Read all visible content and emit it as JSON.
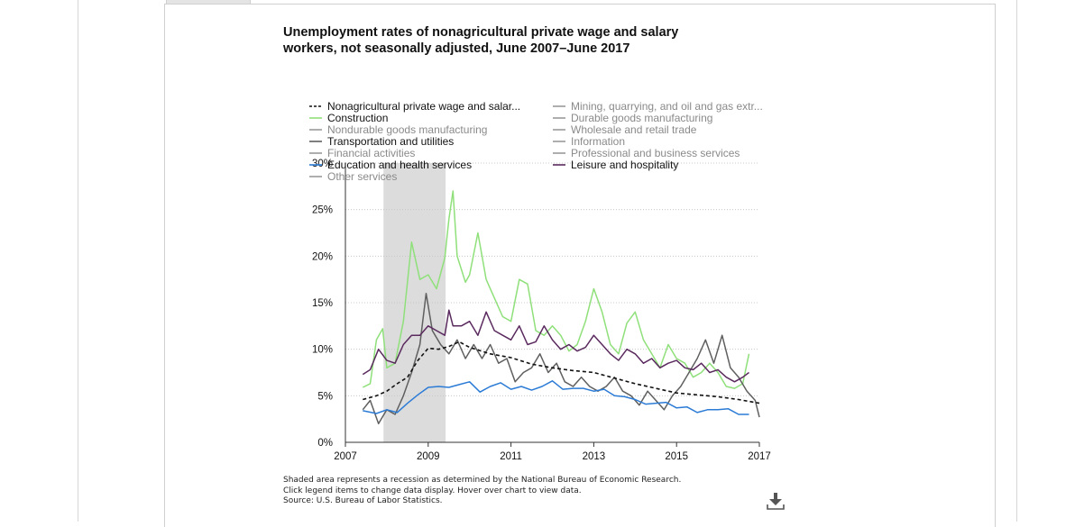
{
  "chart_title": "Unemployment rates of nonagricultural private wage and salary workers, not seasonally adjusted, June 2007–June 2017",
  "notes": [
    "Shaded area represents a recession as determined by the National Bureau of Economic Research.",
    "Click legend items to change data display. Hover over chart to view data.",
    "Source: U.S. Bureau of Labor Statistics."
  ],
  "download_icon": "download-icon",
  "chart_data": {
    "type": "line",
    "title": "Unemployment rates of nonagricultural private wage and salary workers, not seasonally adjusted, June 2007–June 2017",
    "x_range": [
      2007,
      2017
    ],
    "x_ticks": [
      "2007",
      "2009",
      "2011",
      "2013",
      "2015",
      "2017"
    ],
    "ylim": [
      0,
      30
    ],
    "y_ticks": [
      "0%",
      "5%",
      "10%",
      "15%",
      "20%",
      "25%",
      "30%"
    ],
    "grid": "horizontal dotted",
    "recession": {
      "start": 2007.92,
      "end": 2009.42
    },
    "legend_columns": [
      [
        "Nonagricultural private wage and salar...",
        "Construction",
        "Nondurable goods manufacturing",
        "Transportation and utilities",
        "Financial activities",
        "Education and health services",
        "Other services"
      ],
      [
        "Mining, quarrying, and oil and gas extr...",
        "Durable goods manufacturing",
        "Wholesale and retail trade",
        "Information",
        "Professional and business services",
        "Leisure and hospitality"
      ]
    ],
    "series": [
      {
        "name": "Nonagricultural private wage and salar...",
        "color": "#111111",
        "dashed": true,
        "visible": true,
        "x": [
          2007.42,
          2007.75,
          2008.0,
          2008.25,
          2008.5,
          2008.75,
          2009.0,
          2009.25,
          2009.5,
          2009.75,
          2010.0,
          2010.5,
          2011.0,
          2011.5,
          2012.0,
          2012.5,
          2013.0,
          2013.5,
          2014.0,
          2014.5,
          2015.0,
          2015.5,
          2016.0,
          2016.5,
          2017.0
        ],
        "y": [
          4.6,
          5.0,
          5.5,
          6.3,
          7.0,
          8.8,
          10.1,
          10.0,
          10.3,
          10.8,
          10.2,
          9.5,
          9.1,
          8.4,
          8.0,
          7.7,
          7.5,
          6.9,
          6.3,
          5.8,
          5.3,
          5.1,
          4.9,
          4.6,
          4.2
        ]
      },
      {
        "name": "Construction",
        "color": "#8fe07a",
        "dashed": false,
        "visible": true,
        "x": [
          2007.42,
          2007.6,
          2007.75,
          2007.9,
          2008.0,
          2008.2,
          2008.4,
          2008.6,
          2008.8,
          2009.0,
          2009.2,
          2009.4,
          2009.5,
          2009.6,
          2009.7,
          2009.9,
          2010.0,
          2010.2,
          2010.4,
          2010.6,
          2010.8,
          2011.0,
          2011.2,
          2011.4,
          2011.6,
          2011.8,
          2012.0,
          2012.2,
          2012.4,
          2012.6,
          2012.8,
          2013.0,
          2013.2,
          2013.4,
          2013.6,
          2013.8,
          2014.0,
          2014.2,
          2014.4,
          2014.6,
          2014.8,
          2015.0,
          2015.2,
          2015.4,
          2015.6,
          2015.8,
          2016.0,
          2016.2,
          2016.4,
          2016.6,
          2016.75
        ],
        "y": [
          5.9,
          6.3,
          11.0,
          12.2,
          8.0,
          8.5,
          13.0,
          21.5,
          17.5,
          18.0,
          16.5,
          19.8,
          24.0,
          27.0,
          20.0,
          17.2,
          18.0,
          22.5,
          17.5,
          15.5,
          13.5,
          13.0,
          17.5,
          17.0,
          12.0,
          11.5,
          12.5,
          11.5,
          9.8,
          10.5,
          13.0,
          16.5,
          14.0,
          10.5,
          9.5,
          12.8,
          14.0,
          11.0,
          9.5,
          8.0,
          10.5,
          9.0,
          8.5,
          7.0,
          7.5,
          8.5,
          7.5,
          6.0,
          5.8,
          6.3,
          9.5
        ]
      },
      {
        "name": "Transportation and utilities",
        "color": "#5f5f5f",
        "dashed": false,
        "visible": true,
        "x": [
          2007.42,
          2007.6,
          2007.8,
          2008.0,
          2008.2,
          2008.4,
          2008.6,
          2008.8,
          2008.95,
          2009.1,
          2009.3,
          2009.5,
          2009.7,
          2009.9,
          2010.1,
          2010.3,
          2010.5,
          2010.7,
          2010.9,
          2011.1,
          2011.3,
          2011.5,
          2011.7,
          2011.9,
          2012.1,
          2012.3,
          2012.5,
          2012.7,
          2012.9,
          2013.1,
          2013.3,
          2013.5,
          2013.7,
          2013.9,
          2014.1,
          2014.3,
          2014.5,
          2014.7,
          2014.9,
          2015.1,
          2015.3,
          2015.5,
          2015.7,
          2015.9,
          2016.1,
          2016.3,
          2016.5,
          2016.7,
          2016.9,
          2017.0
        ],
        "y": [
          3.5,
          4.5,
          2.0,
          3.5,
          3.0,
          5.0,
          7.5,
          10.5,
          16.0,
          12.0,
          10.5,
          9.5,
          11.0,
          9.0,
          10.5,
          9.0,
          10.5,
          8.5,
          9.0,
          6.5,
          7.5,
          8.0,
          9.5,
          7.5,
          8.5,
          6.5,
          6.0,
          7.0,
          6.0,
          5.5,
          6.0,
          7.0,
          5.5,
          5.0,
          4.0,
          5.5,
          4.5,
          3.5,
          5.0,
          6.0,
          7.5,
          9.0,
          11.0,
          8.5,
          11.5,
          8.0,
          7.0,
          5.5,
          4.5,
          2.7
        ]
      },
      {
        "name": "Education and health services",
        "color": "#2b7bd6",
        "dashed": false,
        "visible": true,
        "x": [
          2007.42,
          2007.75,
          2008.0,
          2008.25,
          2008.5,
          2008.75,
          2009.0,
          2009.25,
          2009.5,
          2009.75,
          2010.0,
          2010.25,
          2010.5,
          2010.75,
          2011.0,
          2011.25,
          2011.5,
          2011.75,
          2012.0,
          2012.25,
          2012.5,
          2012.75,
          2013.0,
          2013.25,
          2013.5,
          2013.75,
          2014.0,
          2014.25,
          2014.5,
          2014.75,
          2015.0,
          2015.25,
          2015.5,
          2015.75,
          2016.0,
          2016.25,
          2016.5,
          2016.75
        ],
        "y": [
          3.4,
          3.1,
          3.5,
          3.2,
          4.2,
          5.1,
          5.9,
          6.0,
          5.9,
          6.2,
          6.5,
          5.4,
          6.0,
          6.4,
          5.7,
          6.0,
          5.6,
          6.0,
          6.6,
          5.7,
          5.8,
          5.8,
          5.5,
          5.7,
          5.0,
          4.9,
          4.6,
          4.1,
          4.2,
          4.3,
          3.7,
          3.8,
          3.2,
          3.5,
          3.5,
          3.6,
          3.0,
          3.0
        ]
      },
      {
        "name": "Leisure and hospitality",
        "color": "#5a2a5e",
        "dashed": false,
        "visible": true,
        "x": [
          2007.42,
          2007.6,
          2007.8,
          2008.0,
          2008.2,
          2008.4,
          2008.6,
          2008.8,
          2009.0,
          2009.2,
          2009.4,
          2009.5,
          2009.6,
          2009.8,
          2010.0,
          2010.2,
          2010.4,
          2010.6,
          2010.8,
          2011.0,
          2011.2,
          2011.4,
          2011.6,
          2011.8,
          2012.0,
          2012.2,
          2012.4,
          2012.6,
          2012.8,
          2013.0,
          2013.2,
          2013.4,
          2013.6,
          2013.8,
          2014.0,
          2014.2,
          2014.4,
          2014.6,
          2014.8,
          2015.0,
          2015.2,
          2015.4,
          2015.6,
          2015.8,
          2016.0,
          2016.2,
          2016.4,
          2016.6,
          2016.75
        ],
        "y": [
          7.3,
          7.8,
          10.0,
          8.8,
          8.5,
          10.5,
          11.5,
          11.5,
          12.5,
          12.0,
          11.5,
          14.2,
          12.5,
          12.5,
          13.0,
          11.5,
          14.0,
          12.0,
          11.5,
          11.0,
          12.5,
          10.5,
          10.8,
          12.5,
          11.0,
          10.0,
          10.5,
          9.8,
          10.2,
          11.5,
          10.5,
          9.5,
          8.8,
          10.0,
          9.5,
          8.5,
          9.0,
          8.0,
          8.5,
          8.8,
          8.0,
          7.8,
          8.5,
          7.5,
          7.8,
          7.0,
          6.5,
          7.0,
          7.5
        ]
      },
      {
        "name": "Mining, quarrying, and oil and gas extr...",
        "color": "#6e6e6e",
        "dashed": false,
        "visible": false,
        "x": [],
        "y": []
      },
      {
        "name": "Durable goods manufacturing",
        "color": "#8a8a8a",
        "dashed": false,
        "visible": false,
        "x": [],
        "y": []
      },
      {
        "name": "Nondurable goods manufacturing",
        "color": "#8a8a8a",
        "dashed": false,
        "visible": false,
        "x": [],
        "y": []
      },
      {
        "name": "Wholesale and retail trade",
        "color": "#8a8a8a",
        "dashed": false,
        "visible": false,
        "x": [],
        "y": []
      },
      {
        "name": "Information",
        "color": "#8a8a8a",
        "dashed": false,
        "visible": false,
        "x": [],
        "y": []
      },
      {
        "name": "Financial activities",
        "color": "#8a8a8a",
        "dashed": false,
        "visible": false,
        "x": [],
        "y": []
      },
      {
        "name": "Professional and business services",
        "color": "#8a8a8a",
        "dashed": false,
        "visible": false,
        "x": [],
        "y": []
      },
      {
        "name": "Other services",
        "color": "#8a8a8a",
        "dashed": false,
        "visible": false,
        "x": [],
        "y": []
      }
    ]
  }
}
